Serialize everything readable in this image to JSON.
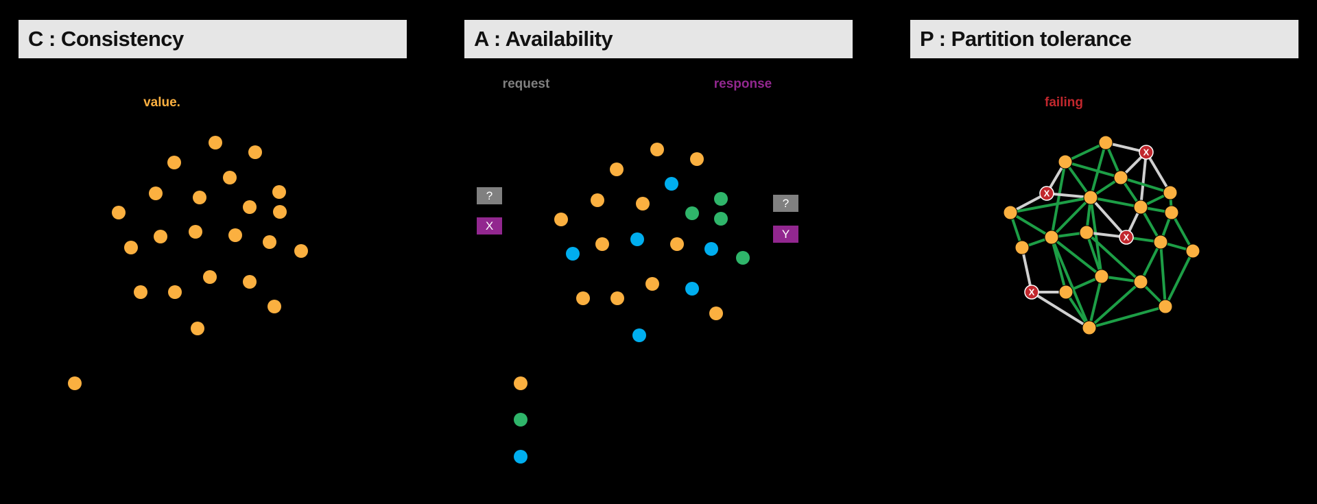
{
  "colors": {
    "background": "#000000",
    "header_bg": "#e6e6e6",
    "node_orange": "#fbb040",
    "node_blue": "#00aeef",
    "node_green": "#2fb56a",
    "request_gray": "#808080",
    "response_purple": "#92278f",
    "failing_red": "#c1272d",
    "link_green": "#1d9e46",
    "link_gray": "#d0d0d0"
  },
  "panels": {
    "consistency": {
      "title": "C : Consistency",
      "label": "value."
    },
    "availability": {
      "title": "A : Availability",
      "request_label": "request",
      "response_label": "response",
      "request_box_1": "?",
      "request_box_2": "X",
      "response_box_1": "?",
      "response_box_2": "Y"
    },
    "partition": {
      "title": "P : Partition tolerance",
      "label": "failing",
      "failed_mark": "X"
    }
  }
}
